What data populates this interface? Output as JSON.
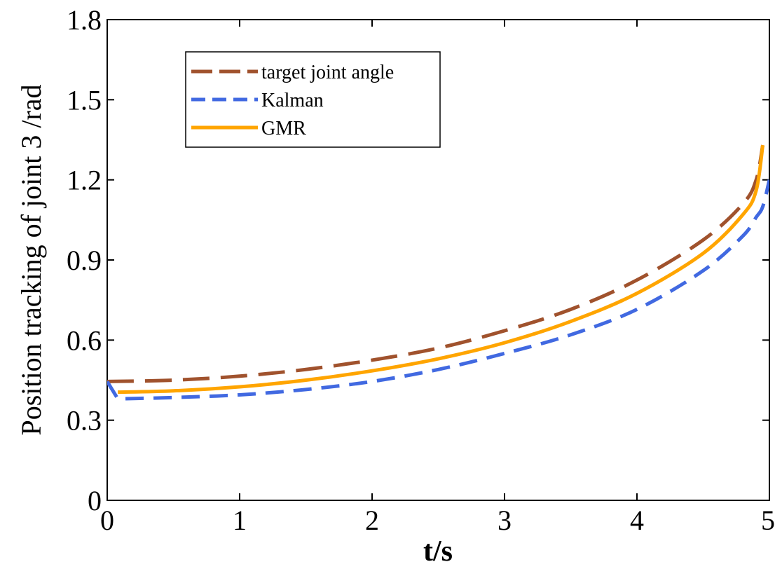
{
  "chart_data": {
    "type": "line",
    "title": "",
    "xlabel": "t/s",
    "ylabel": "Position tracking of joint 3 /rad",
    "xlim": [
      0,
      5
    ],
    "ylim": [
      0,
      1.8
    ],
    "xticks": [
      0,
      1,
      2,
      3,
      4,
      5
    ],
    "yticks": [
      0,
      0.3,
      0.6,
      0.9,
      1.2,
      1.5,
      1.8
    ],
    "xtick_labels": [
      "0",
      "1",
      "2",
      "3",
      "4",
      "5"
    ],
    "ytick_labels": [
      "0",
      "0.3",
      "0.6",
      "0.9",
      "1.2",
      "1.5",
      "1.8"
    ],
    "grid": false,
    "legend_position": "top-left",
    "series": [
      {
        "name": "target joint angle",
        "color": "#A0522D",
        "style": "long-dash",
        "x": [
          0,
          0.5,
          1.0,
          1.5,
          2.0,
          2.5,
          3.0,
          3.5,
          4.0,
          4.5,
          4.8,
          4.9,
          4.95
        ],
        "y": [
          0.445,
          0.45,
          0.465,
          0.49,
          0.525,
          0.57,
          0.635,
          0.715,
          0.825,
          0.975,
          1.11,
          1.2,
          1.33
        ]
      },
      {
        "name": "Kalman",
        "color": "#4169E1",
        "style": "dash",
        "x": [
          0,
          0.08,
          0.5,
          1.0,
          1.5,
          2.0,
          2.5,
          3.0,
          3.5,
          4.0,
          4.5,
          4.8,
          4.9,
          4.95,
          5.0
        ],
        "y": [
          0.445,
          0.38,
          0.385,
          0.395,
          0.415,
          0.445,
          0.49,
          0.55,
          0.62,
          0.715,
          0.86,
          0.99,
          1.06,
          1.1,
          1.2
        ]
      },
      {
        "name": "GMR",
        "color": "#FFA500",
        "style": "solid",
        "x": [
          0.08,
          0.5,
          1.0,
          1.5,
          2.0,
          2.5,
          3.0,
          3.5,
          4.0,
          4.5,
          4.8,
          4.9,
          4.95
        ],
        "y": [
          0.405,
          0.41,
          0.425,
          0.45,
          0.485,
          0.53,
          0.59,
          0.67,
          0.775,
          0.925,
          1.07,
          1.16,
          1.33
        ]
      }
    ]
  }
}
